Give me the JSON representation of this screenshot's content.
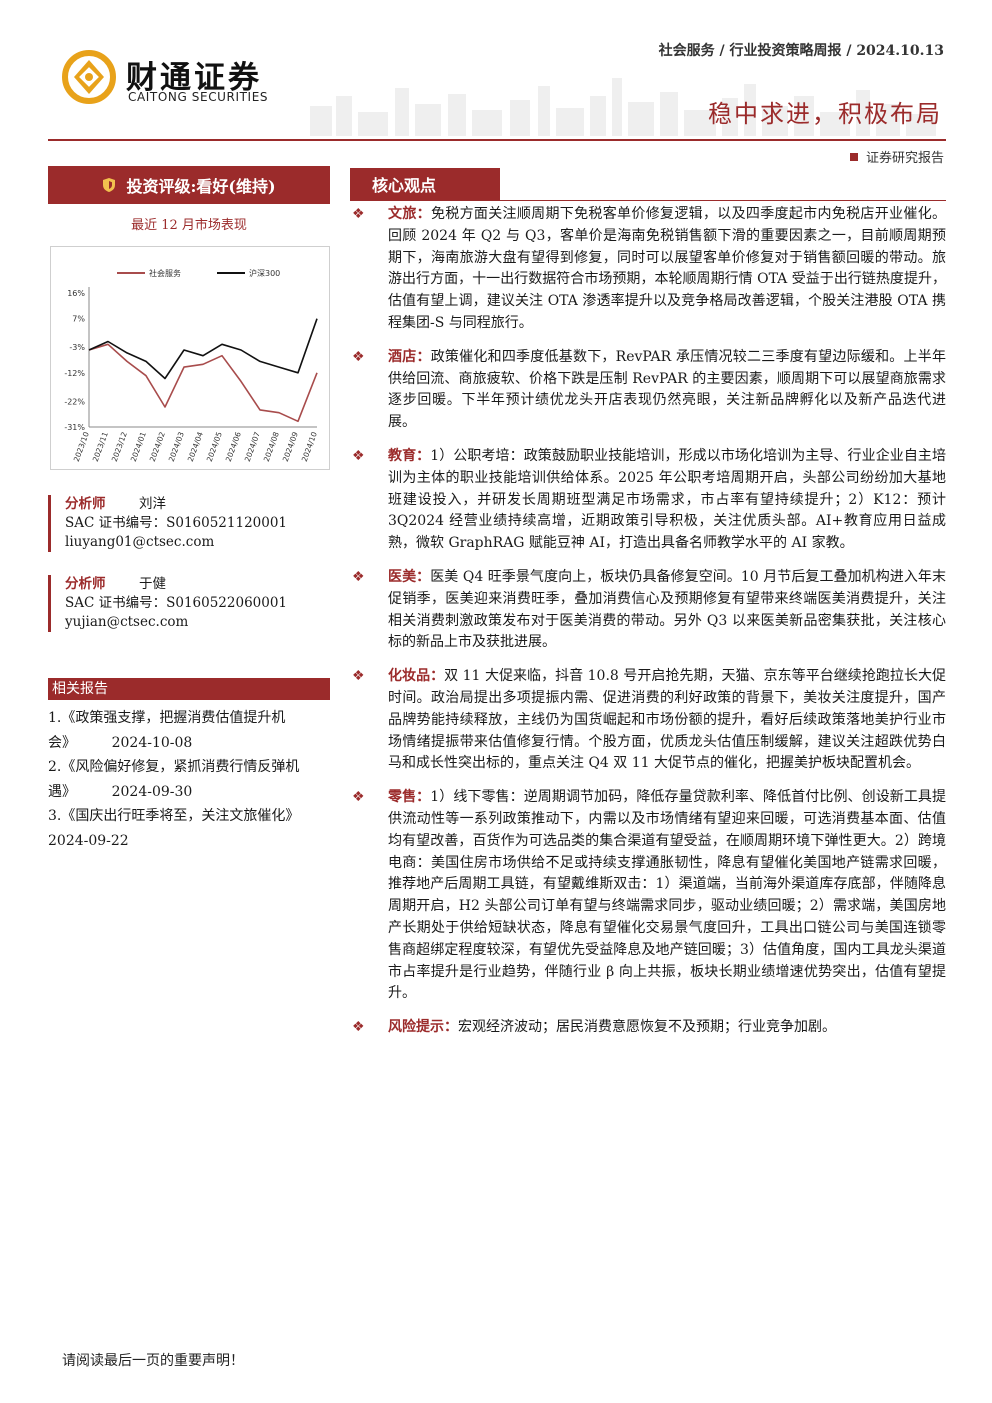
{
  "header": {
    "logo_cn": "财通证券",
    "logo_en": "CAITONG SECURITIES",
    "meta": "社会服务 / 行业投资策略周报 / 2024.10.13",
    "title": "稳中求进，积极布局",
    "doc_type": "证券研究报告",
    "brand_color": "#9b2b2b"
  },
  "sidebar": {
    "rating": "投资评级:看好(维持)",
    "chart_title": "最近 12 月市场表现",
    "analysts": [
      {
        "role": "分析师",
        "name": "刘洋",
        "sac": "SAC 证书编号：S0160521120001",
        "email": "liuyang01@ctsec.com"
      },
      {
        "role": "分析师",
        "name": "于健",
        "sac": "SAC 证书编号：S0160522060001",
        "email": "yujian@ctsec.com"
      }
    ],
    "related_title": "相关报告",
    "related": [
      {
        "text": "1.《政策强支撑，把握消费估值提升机会》",
        "date": "2024-10-08"
      },
      {
        "text": "2.《风险偏好修复，紧抓消费行情反弹机遇》",
        "date": "2024-09-30"
      },
      {
        "text": "3.《国庆出行旺季将至，关注文旅催化》",
        "date": "2024-09-22"
      }
    ]
  },
  "chart_data": {
    "type": "line",
    "legend_position": "top",
    "grid": false,
    "x": [
      "2023/10",
      "2023/11",
      "2023/12",
      "2024/01",
      "2024/02",
      "2024/03",
      "2024/04",
      "2024/05",
      "2024/06",
      "2024/07",
      "2024/08",
      "2024/09",
      "2024/10"
    ],
    "yticks": [
      "16%",
      "7%",
      "-3%",
      "-12%",
      "-22%",
      "-31%"
    ],
    "ylim": [
      -31,
      16
    ],
    "series": [
      {
        "name": "社会服务",
        "color": "#a84c4c",
        "values": [
          -4,
          -2,
          -8,
          -13,
          -24,
          -10,
          -9,
          -6,
          -15,
          -25,
          -26,
          -29,
          -12
        ]
      },
      {
        "name": "沪深300",
        "color": "#111111",
        "values": [
          -4,
          -1,
          -5,
          -8,
          -14,
          -4,
          -6,
          -2,
          -4,
          -8,
          -10,
          -12,
          7
        ]
      }
    ]
  },
  "core": {
    "title": "核心观点",
    "points": [
      {
        "label": "文旅：",
        "text": "免税方面关注顺周期下免税客单价修复逻辑，以及四季度起市内免税店开业催化。回顾 2024 年 Q2 与 Q3，客单价是海南免税销售额下滑的重要因素之一，目前顺周期预期下，海南旅游大盘有望得到修复，同时可以展望客单价修复对于销售额回暖的带动。旅游出行方面，十一出行数据符合市场预期，本轮顺周期行情 OTA 受益于出行链热度提升，估值有望上调，建议关注 OTA 渗透率提升以及竞争格局改善逻辑，个股关注港股 OTA 携程集团-S 与同程旅行。"
      },
      {
        "label": "酒店：",
        "text": "政策催化和四季度低基数下，RevPAR 承压情况较二三季度有望边际缓和。上半年供给回流、商旅疲软、价格下跌是压制 RevPAR 的主要因素，顺周期下可以展望商旅需求逐步回暖。下半年预计绩优龙头开店表现仍然亮眼，关注新品牌孵化以及新产品迭代进展。"
      },
      {
        "label": "教育：",
        "text": "1）公职考培：政策鼓励职业技能培训，形成以市场化培训为主导、行业企业自主培训为主体的职业技能培训供给体系。2025 年公职考培周期开启，头部公司纷纷加大基地班建设投入，并研发长周期班型满足市场需求，市占率有望持续提升；2）K12：预计 3Q2024 经营业绩持续高增，近期政策引导积极，关注优质头部。AI+教育应用日益成熟，微软 GraphRAG 赋能豆神 AI，打造出具备名师教学水平的 AI 家教。"
      },
      {
        "label": "医美：",
        "text": "医美 Q4 旺季景气度向上，板块仍具备修复空间。10 月节后复工叠加机构进入年末促销季，医美迎来消费旺季，叠加消费信心及预期修复有望带来终端医美消费提升，关注相关消费刺激政策发布对于医美消费的带动。另外 Q3 以来医美新品密集获批，关注核心标的新品上市及获批进展。"
      },
      {
        "label": "化妆品：",
        "text": "双 11 大促来临，抖音 10.8 号开启抢先期，天猫、京东等平台继续抢跑拉长大促时间。政治局提出多项提振内需、促进消费的利好政策的背景下，美妆关注度提升，国产品牌势能持续释放，主线仍为国货崛起和市场份额的提升，看好后续政策落地美护行业市场情绪提振带来估值修复行情。个股方面，优质龙头估值压制缓解，建议关注超跌优势白马和成长性突出标的，重点关注 Q4 双 11 大促节点的催化，把握美护板块配置机会。"
      },
      {
        "label": "零售：",
        "text": "1）线下零售：逆周期调节加码，降低存量贷款利率、降低首付比例、创设新工具提供流动性等一系列政策推动下，内需以及市场情绪有望迎来回暖，可选消费基本面、估值均有望改善，百货作为可选品类的集合渠道有望受益，在顺周期环境下弹性更大。2）跨境电商：美国住房市场供给不足或持续支撑通胀韧性，降息有望催化美国地产链需求回暖，推荐地产后周期工具链，有望戴维斯双击：1）渠道端，当前海外渠道库存底部，伴随降息周期开启，H2 头部公司订单有望与终端需求同步，驱动业绩回暖；2）需求端，美国房地产长期处于供给短缺状态，降息有望催化交易景气度回升，工具出口链公司与美国连锁零售商超绑定程度较深，有望优先受益降息及地产链回暖；3）估值角度，国内工具龙头渠道市占率提升是行业趋势，伴随行业 β 向上共振，板块长期业绩增速优势突出，估值有望提升。"
      },
      {
        "label": "风险提示：",
        "text": "宏观经济波动；居民消费意愿恢复不及预期；行业竞争加剧。"
      }
    ]
  },
  "footer": {
    "note": "请阅读最后一页的重要声明！"
  }
}
